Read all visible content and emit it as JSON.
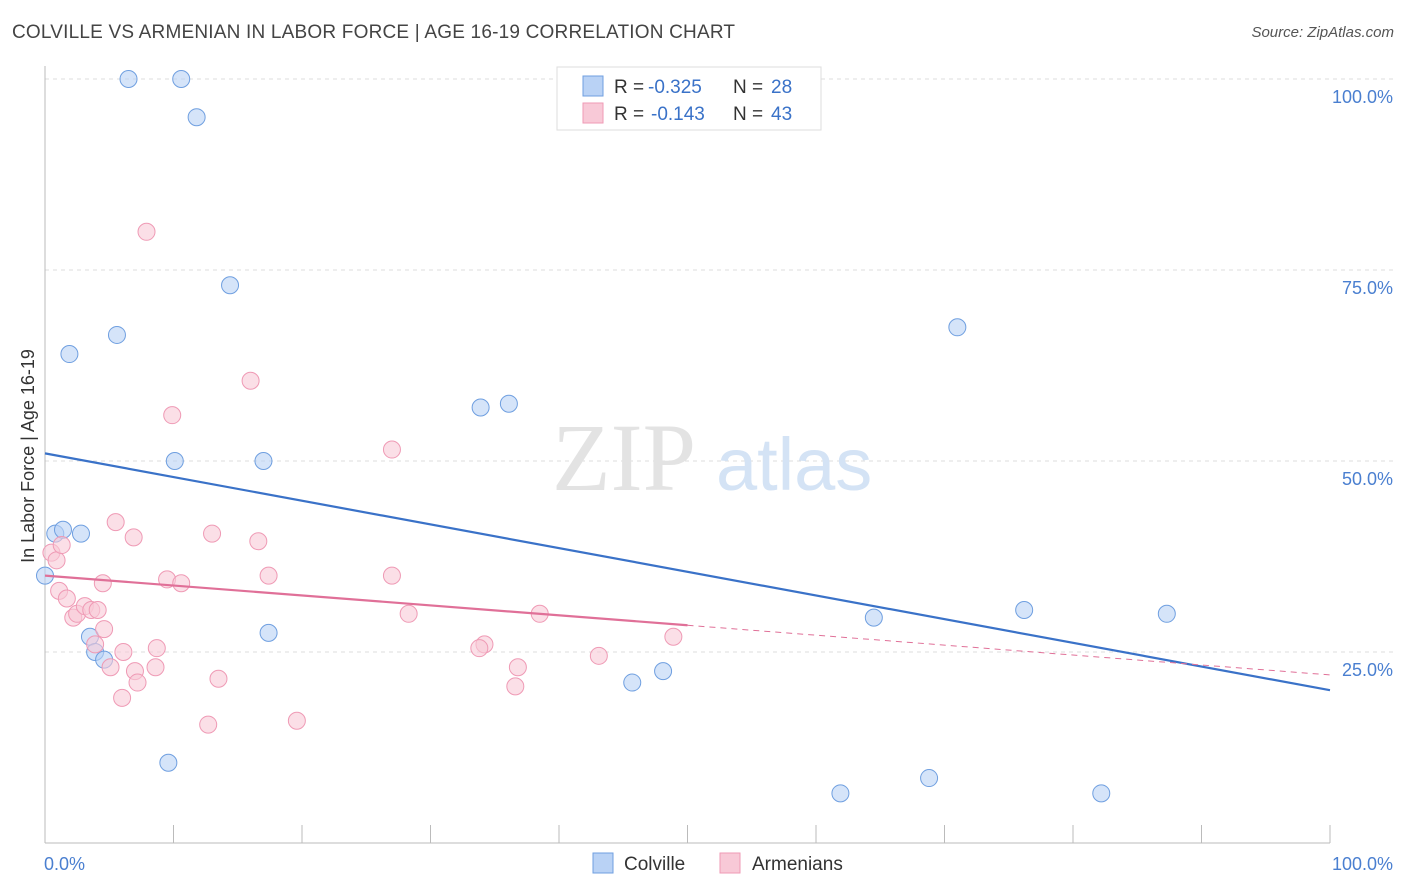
{
  "header": {
    "title": "COLVILLE VS ARMENIAN IN LABOR FORCE | AGE 16-19 CORRELATION CHART",
    "source": "Source: ZipAtlas.com"
  },
  "watermark": {
    "zip": "ZIP",
    "atlas": "atlas"
  },
  "chart_data": {
    "type": "scatter",
    "ylabel": "In Labor Force | Age 16-19",
    "xlim": [
      0,
      100
    ],
    "ylim": [
      0,
      100
    ],
    "x_tick_labels": {
      "min": "0.0%",
      "max": "100.0%"
    },
    "y_ticks": [
      {
        "value": 25,
        "label": "25.0%"
      },
      {
        "value": 50,
        "label": "50.0%"
      },
      {
        "value": 75,
        "label": "75.0%"
      },
      {
        "value": 100,
        "label": "100.0%"
      }
    ],
    "grid": true,
    "legend_position": "top-center",
    "series": [
      {
        "name": "Colville",
        "color": "#6f9fe0",
        "fill": "#b9d2f5",
        "line_color": "#3a72c8",
        "R": "-0.325",
        "N": "28",
        "trend": {
          "x0": 0,
          "y0": 51,
          "x1": 100,
          "y1": 20
        },
        "points": [
          [
            6.5,
            100
          ],
          [
            10.6,
            100
          ],
          [
            11.8,
            95
          ],
          [
            14.4,
            73
          ],
          [
            5.6,
            66.5
          ],
          [
            1.9,
            64
          ],
          [
            10.1,
            50
          ],
          [
            17,
            50
          ],
          [
            33.9,
            57
          ],
          [
            36.1,
            57.5
          ],
          [
            71,
            67.5
          ],
          [
            0.8,
            40.5
          ],
          [
            1.4,
            41
          ],
          [
            2.8,
            40.5
          ],
          [
            0,
            35
          ],
          [
            3.5,
            27
          ],
          [
            3.9,
            25
          ],
          [
            4.6,
            24
          ],
          [
            17.4,
            27.5
          ],
          [
            9.6,
            10.5
          ],
          [
            45.7,
            21
          ],
          [
            48.1,
            22.5
          ],
          [
            64.5,
            29.5
          ],
          [
            76.2,
            30.5
          ],
          [
            87.3,
            30
          ],
          [
            82.2,
            6.5
          ],
          [
            68.8,
            8.5
          ],
          [
            61.9,
            6.5
          ]
        ]
      },
      {
        "name": "Armenians",
        "color": "#ef9ab5",
        "fill": "#f8c9d7",
        "line_color": "#e07098",
        "R": "-0.143",
        "N": "43",
        "trend": {
          "x0": 0,
          "y0": 35,
          "x1": 50,
          "y1": 28.5
        },
        "trend_dashed": {
          "x0": 50,
          "y0": 28.5,
          "x1": 100,
          "y1": 22
        },
        "points": [
          [
            7.9,
            80
          ],
          [
            9.9,
            56
          ],
          [
            16,
            60.5
          ],
          [
            27,
            51.5
          ],
          [
            0.5,
            38
          ],
          [
            0.9,
            37
          ],
          [
            1.3,
            39
          ],
          [
            5.5,
            42
          ],
          [
            6.9,
            40
          ],
          [
            13,
            40.5
          ],
          [
            16.6,
            39.5
          ],
          [
            1.1,
            33
          ],
          [
            1.7,
            32
          ],
          [
            2.2,
            29.5
          ],
          [
            2.5,
            30
          ],
          [
            3.1,
            31
          ],
          [
            3.6,
            30.5
          ],
          [
            4.1,
            30.5
          ],
          [
            4.6,
            28
          ],
          [
            3.9,
            26
          ],
          [
            4.5,
            34
          ],
          [
            9.5,
            34.5
          ],
          [
            10.6,
            34
          ],
          [
            17.4,
            35
          ],
          [
            27,
            35
          ],
          [
            28.3,
            30
          ],
          [
            38.5,
            30
          ],
          [
            34.2,
            26
          ],
          [
            33.8,
            25.5
          ],
          [
            43.1,
            24.5
          ],
          [
            48.9,
            27
          ],
          [
            6.1,
            25
          ],
          [
            8.7,
            25.5
          ],
          [
            7,
            22.5
          ],
          [
            8.6,
            23
          ],
          [
            5.1,
            23
          ],
          [
            7.2,
            21
          ],
          [
            13.5,
            21.5
          ],
          [
            36.8,
            23
          ],
          [
            36.6,
            20.5
          ],
          [
            6,
            19
          ],
          [
            12.7,
            15.5
          ],
          [
            19.6,
            16
          ]
        ]
      }
    ]
  }
}
